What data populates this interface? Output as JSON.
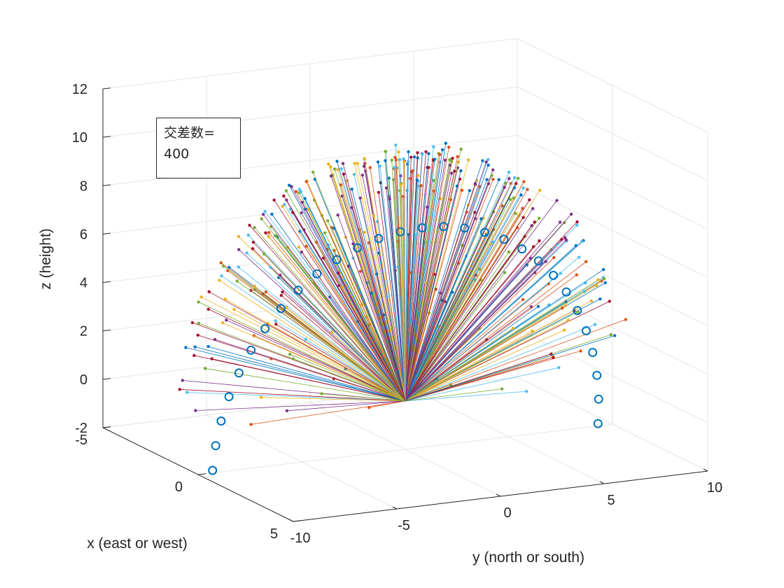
{
  "chart_data": {
    "type": "scatter3d",
    "title": "",
    "xlabel": "x (east or west)",
    "ylabel": "y (north or south)",
    "zlabel": "z (height)",
    "xlim": [
      -5,
      5
    ],
    "ylim": [
      -10,
      10
    ],
    "zlim": [
      -2,
      12
    ],
    "x_ticks": [
      "-5",
      "0",
      "5"
    ],
    "y_ticks": [
      "-10",
      "-5",
      "0",
      "5",
      "10"
    ],
    "z_ticks": [
      "-2",
      "0",
      "2",
      "4",
      "6",
      "8",
      "10",
      "12"
    ],
    "grid": true,
    "series_colors": [
      "#0072BD",
      "#D95319",
      "#EDB120",
      "#7E2F8E",
      "#77AC30",
      "#4DBEEE",
      "#A2142F"
    ],
    "origin": [
      0,
      0,
      0
    ],
    "num_trajectories": 400,
    "endpoint_envelope": {
      "description": "trajectory endpoints lie on a dome reaching about z = 10 above the origin",
      "max_height": 10
    }
  },
  "annotation": {
    "label": "交差数=",
    "value": "400"
  }
}
